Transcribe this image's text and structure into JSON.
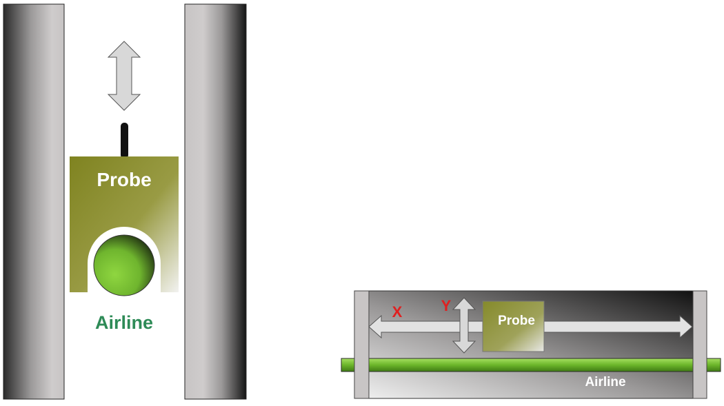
{
  "front_view": {
    "probe_label": "Probe",
    "airline_label": "Airline",
    "airline_label_color": "#2e8b57",
    "probe_label_color": "#ffffff"
  },
  "side_view": {
    "probe_label": "Probe",
    "airline_label": "Airline",
    "x_axis_label": "X",
    "y_axis_label": "Y",
    "axis_label_color": "#e02020",
    "probe_label_color": "#ffffff",
    "airline_label_color": "#ffffff"
  },
  "colors": {
    "probe_olive": "#8a8e28",
    "airline_green": "#7cc23a",
    "wall_gray": "#c9c6c6",
    "arrow_fill": "#d8d8d8"
  }
}
